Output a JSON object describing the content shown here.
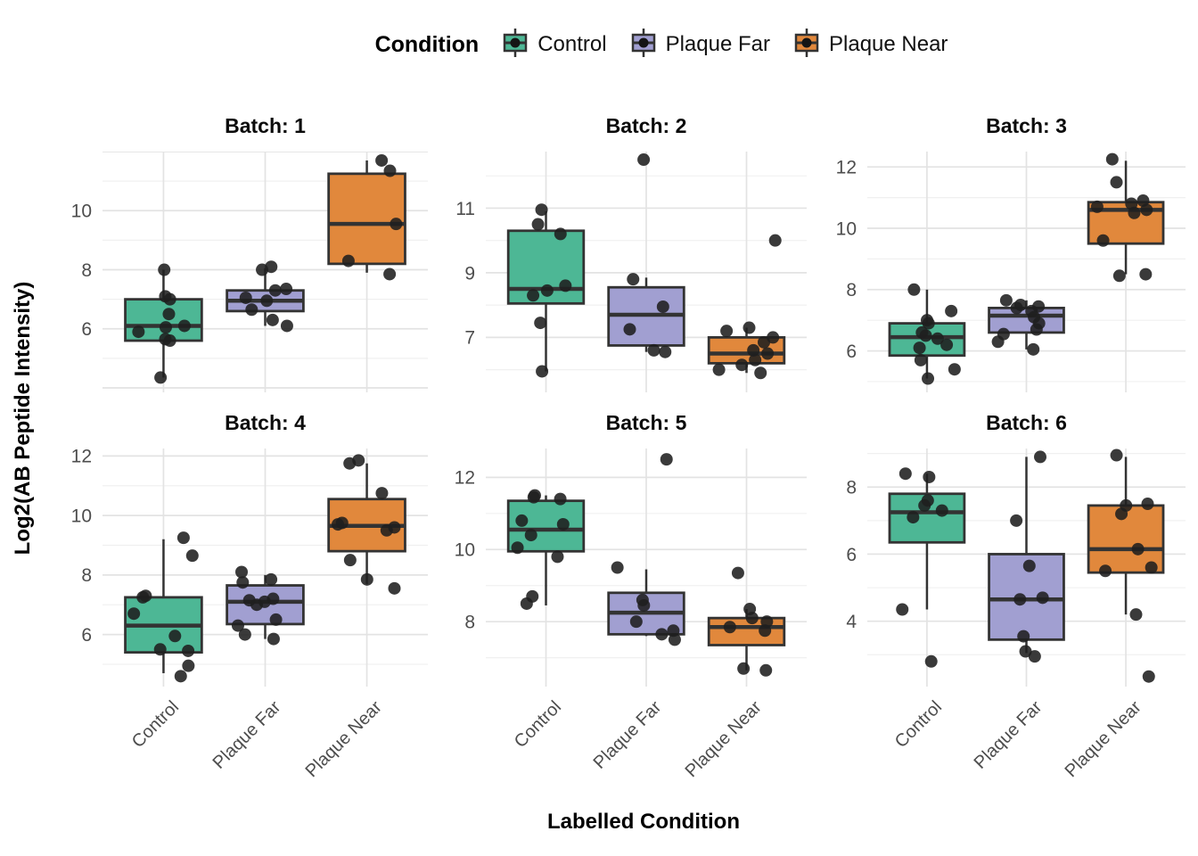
{
  "legend": {
    "title": "Condition"
  },
  "chart_data": {
    "type": "boxplot",
    "subtype": "faceted boxplots with jittered points",
    "legend_title": "Condition",
    "legend_position": "top",
    "grid": "major+minor, no panel border",
    "xlabel": "Labelled Condition",
    "ylabel": "Log2(AB Peptide Intensity)",
    "x_categories": [
      "Control",
      "Plaque Far",
      "Plaque Near"
    ],
    "groups": [
      {
        "name": "Control",
        "color": "#4DB795"
      },
      {
        "name": "Plaque Far",
        "color": "#A19FD1"
      },
      {
        "name": "Plaque Near",
        "color": "#E1883C"
      }
    ],
    "style": {
      "box_stroke": "#333333",
      "point_color": "#1f1f1f",
      "grid_major": "#e3e3e3",
      "grid_minor": "#f0f0f0",
      "axis_text_color": "#4d4d4d"
    },
    "facets": [
      {
        "title": "Batch: 1",
        "ylim": [
          3.85,
          12.0
        ],
        "yticks": [
          6,
          8,
          10
        ],
        "groups": [
          {
            "box": {
              "low": 4.35,
              "q1": 5.6,
              "median": 6.1,
              "q3": 7.0,
              "high": 8.0
            },
            "points": [
              8.0,
              7.1,
              7.0,
              6.5,
              6.1,
              6.05,
              5.9,
              5.65,
              5.6,
              4.35
            ]
          },
          {
            "box": {
              "low": 6.1,
              "q1": 6.6,
              "median": 6.95,
              "q3": 7.3,
              "high": 8.05
            },
            "points": [
              8.1,
              8.0,
              7.35,
              7.3,
              7.05,
              6.95,
              6.65,
              6.3,
              6.1
            ]
          },
          {
            "box": {
              "low": 7.9,
              "q1": 8.2,
              "median": 9.55,
              "q3": 11.25,
              "high": 11.7
            },
            "points": [
              11.7,
              11.35,
              9.55,
              8.3,
              7.85
            ]
          }
        ]
      },
      {
        "title": "Batch: 2",
        "ylim": [
          5.3,
          12.75
        ],
        "yticks": [
          7,
          9,
          11
        ],
        "groups": [
          {
            "box": {
              "low": 5.95,
              "q1": 8.05,
              "median": 8.5,
              "q3": 10.3,
              "high": 10.9
            },
            "points": [
              10.95,
              10.5,
              10.2,
              8.6,
              8.45,
              8.3,
              7.45,
              5.95
            ]
          },
          {
            "box": {
              "low": 6.55,
              "q1": 6.75,
              "median": 7.7,
              "q3": 8.55,
              "high": 8.85
            },
            "points": [
              12.5,
              8.8,
              7.95,
              7.25,
              6.6,
              6.55
            ]
          },
          {
            "box": {
              "low": 5.9,
              "q1": 6.2,
              "median": 6.5,
              "q3": 7.0,
              "high": 7.3
            },
            "points": [
              10.0,
              7.3,
              7.2,
              7.0,
              6.85,
              6.6,
              6.5,
              6.3,
              6.15,
              6.0,
              5.9
            ]
          }
        ]
      },
      {
        "title": "Batch: 3",
        "ylim": [
          4.65,
          12.5
        ],
        "yticks": [
          6,
          8,
          10,
          12
        ],
        "groups": [
          {
            "box": {
              "low": 5.1,
              "q1": 5.85,
              "median": 6.45,
              "q3": 6.9,
              "high": 8.0
            },
            "points": [
              8.0,
              7.3,
              7.0,
              6.9,
              6.6,
              6.5,
              6.4,
              6.2,
              6.1,
              5.7,
              5.4,
              5.1
            ]
          },
          {
            "box": {
              "low": 6.05,
              "q1": 6.6,
              "median": 7.15,
              "q3": 7.4,
              "high": 7.65
            },
            "points": [
              7.65,
              7.5,
              7.45,
              7.4,
              7.3,
              7.1,
              6.9,
              6.7,
              6.55,
              6.3,
              6.05
            ]
          },
          {
            "box": {
              "low": 8.5,
              "q1": 9.5,
              "median": 10.6,
              "q3": 10.85,
              "high": 12.2
            },
            "points": [
              12.25,
              11.5,
              10.9,
              10.8,
              10.7,
              10.6,
              10.5,
              9.6,
              8.5,
              8.45
            ]
          }
        ]
      },
      {
        "title": "Batch: 4",
        "ylim": [
          4.25,
          12.25
        ],
        "yticks": [
          6,
          8,
          10,
          12
        ],
        "groups": [
          {
            "box": {
              "low": 4.7,
              "q1": 5.4,
              "median": 6.3,
              "q3": 7.25,
              "high": 9.2
            },
            "points": [
              9.25,
              8.65,
              7.3,
              7.25,
              6.7,
              5.95,
              5.5,
              5.45,
              4.95,
              4.6
            ]
          },
          {
            "box": {
              "low": 5.85,
              "q1": 6.35,
              "median": 7.1,
              "q3": 7.65,
              "high": 8.0
            },
            "points": [
              8.1,
              7.85,
              7.75,
              7.2,
              7.15,
              7.1,
              7.0,
              6.5,
              6.3,
              6.0,
              5.85
            ]
          },
          {
            "box": {
              "low": 7.7,
              "q1": 8.8,
              "median": 9.65,
              "q3": 10.55,
              "high": 11.75
            },
            "points": [
              11.85,
              11.75,
              10.75,
              9.75,
              9.7,
              9.6,
              9.5,
              8.5,
              7.85,
              7.55
            ]
          }
        ]
      },
      {
        "title": "Batch: 5",
        "ylim": [
          6.2,
          12.8
        ],
        "yticks": [
          8,
          10,
          12
        ],
        "groups": [
          {
            "box": {
              "low": 8.45,
              "q1": 9.95,
              "median": 10.55,
              "q3": 11.35,
              "high": 11.5
            },
            "points": [
              11.5,
              11.45,
              11.4,
              10.8,
              10.7,
              10.4,
              10.05,
              9.8,
              8.7,
              8.5
            ]
          },
          {
            "box": {
              "low": 7.6,
              "q1": 7.65,
              "median": 8.25,
              "q3": 8.8,
              "high": 9.45
            },
            "points": [
              12.5,
              9.5,
              8.6,
              8.45,
              8.0,
              7.75,
              7.65,
              7.5
            ]
          },
          {
            "box": {
              "low": 6.65,
              "q1": 7.35,
              "median": 7.85,
              "q3": 8.1,
              "high": 8.35
            },
            "points": [
              9.35,
              8.35,
              8.1,
              8.0,
              7.85,
              7.75,
              6.7,
              6.65
            ]
          }
        ]
      },
      {
        "title": "Batch: 6",
        "ylim": [
          2.05,
          9.15
        ],
        "yticks": [
          4,
          6,
          8
        ],
        "groups": [
          {
            "box": {
              "low": 4.35,
              "q1": 6.35,
              "median": 7.25,
              "q3": 7.8,
              "high": 8.4
            },
            "points": [
              8.4,
              8.3,
              7.6,
              7.45,
              7.3,
              7.1,
              4.35,
              2.8
            ]
          },
          {
            "box": {
              "low": 3.05,
              "q1": 3.45,
              "median": 4.65,
              "q3": 6.0,
              "high": 8.9
            },
            "points": [
              8.9,
              7.0,
              5.65,
              4.7,
              4.65,
              3.55,
              3.1,
              2.95
            ]
          },
          {
            "box": {
              "low": 4.2,
              "q1": 5.45,
              "median": 6.15,
              "q3": 7.45,
              "high": 8.9
            },
            "points": [
              8.95,
              7.5,
              7.45,
              7.2,
              6.15,
              5.6,
              5.5,
              4.2,
              2.35
            ]
          }
        ]
      }
    ]
  }
}
